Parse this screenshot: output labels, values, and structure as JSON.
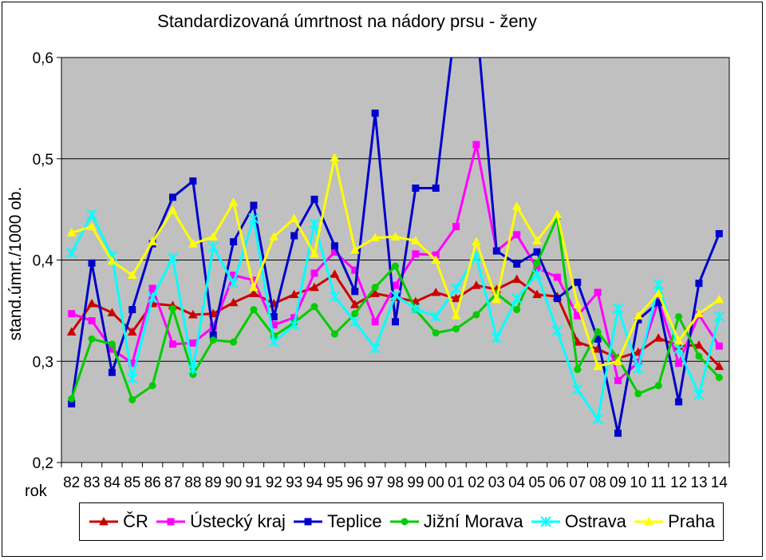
{
  "chart_data": {
    "type": "line",
    "title": "Standardizovaná úmrtnost na nádory prsu - ženy",
    "ylabel": "stand.úmrt./1000 ob.",
    "xlabel": "rok",
    "ylim": [
      0.2,
      0.6
    ],
    "yticks": [
      "0,2",
      "0,3",
      "0,4",
      "0,5",
      "0,6"
    ],
    "grid": "horizontal",
    "legend_position": "bottom",
    "categories": [
      "82",
      "83",
      "84",
      "85",
      "86",
      "87",
      "88",
      "89",
      "90",
      "91",
      "92",
      "93",
      "94",
      "95",
      "96",
      "97",
      "98",
      "99",
      "00",
      "01",
      "02",
      "03",
      "04",
      "05",
      "06",
      "07",
      "08",
      "09",
      "10",
      "11",
      "12",
      "13",
      "14"
    ],
    "series": [
      {
        "name": "ČR",
        "color": "#cc0000",
        "marker": "triangle",
        "values": [
          0.329,
          0.357,
          0.348,
          0.329,
          0.357,
          0.355,
          0.346,
          0.347,
          0.358,
          0.367,
          0.357,
          0.366,
          0.373,
          0.386,
          0.356,
          0.367,
          0.363,
          0.359,
          0.368,
          0.362,
          0.375,
          0.371,
          0.381,
          0.366,
          0.364,
          0.319,
          0.312,
          0.303,
          0.309,
          0.323,
          0.315,
          0.316,
          0.295
        ]
      },
      {
        "name": "Ústecký kraj",
        "color": "#ff00ff",
        "marker": "square",
        "values": [
          0.347,
          0.34,
          0.312,
          0.298,
          0.372,
          0.317,
          0.318,
          0.334,
          0.385,
          0.38,
          0.336,
          0.343,
          0.387,
          0.408,
          0.39,
          0.339,
          0.375,
          0.406,
          0.405,
          0.433,
          0.514,
          0.409,
          0.425,
          0.392,
          0.383,
          0.345,
          0.368,
          0.281,
          0.299,
          0.36,
          0.298,
          0.346,
          0.315
        ]
      },
      {
        "name": "Teplice",
        "color": "#0000cc",
        "marker": "square",
        "values": [
          0.258,
          0.397,
          0.289,
          0.351,
          0.416,
          0.462,
          0.478,
          0.326,
          0.418,
          0.454,
          0.344,
          0.424,
          0.46,
          0.414,
          0.369,
          0.545,
          0.339,
          0.471,
          0.471,
          0.64,
          0.64,
          0.409,
          0.396,
          0.408,
          0.362,
          0.378,
          0.322,
          0.229,
          0.341,
          0.358,
          0.26,
          0.377,
          0.426
        ]
      },
      {
        "name": "Jižní Morava",
        "color": "#00cc00",
        "marker": "circle",
        "values": [
          0.263,
          0.322,
          0.317,
          0.262,
          0.276,
          0.352,
          0.287,
          0.321,
          0.319,
          0.351,
          0.325,
          0.338,
          0.354,
          0.327,
          0.347,
          0.373,
          0.394,
          0.351,
          0.328,
          0.332,
          0.346,
          0.367,
          0.351,
          0.397,
          0.442,
          0.292,
          0.329,
          0.303,
          0.268,
          0.276,
          0.344,
          0.305,
          0.284
        ]
      },
      {
        "name": "Ostrava",
        "color": "#00ffff",
        "marker": "star",
        "values": [
          0.407,
          0.445,
          0.404,
          0.283,
          0.363,
          0.402,
          0.292,
          0.413,
          0.377,
          0.441,
          0.319,
          0.336,
          0.436,
          0.364,
          0.339,
          0.313,
          0.365,
          0.352,
          0.344,
          0.372,
          0.404,
          0.323,
          0.362,
          0.386,
          0.33,
          0.272,
          0.243,
          0.352,
          0.293,
          0.376,
          0.312,
          0.267,
          0.344
        ]
      },
      {
        "name": "Praha",
        "color": "#ffff00",
        "marker": "triangle",
        "values": [
          0.427,
          0.433,
          0.399,
          0.385,
          0.418,
          0.449,
          0.416,
          0.423,
          0.457,
          0.373,
          0.423,
          0.441,
          0.406,
          0.501,
          0.41,
          0.422,
          0.423,
          0.419,
          0.4,
          0.345,
          0.418,
          0.361,
          0.453,
          0.419,
          0.445,
          0.356,
          0.295,
          0.3,
          0.345,
          0.367,
          0.32,
          0.347,
          0.361
        ]
      }
    ]
  }
}
